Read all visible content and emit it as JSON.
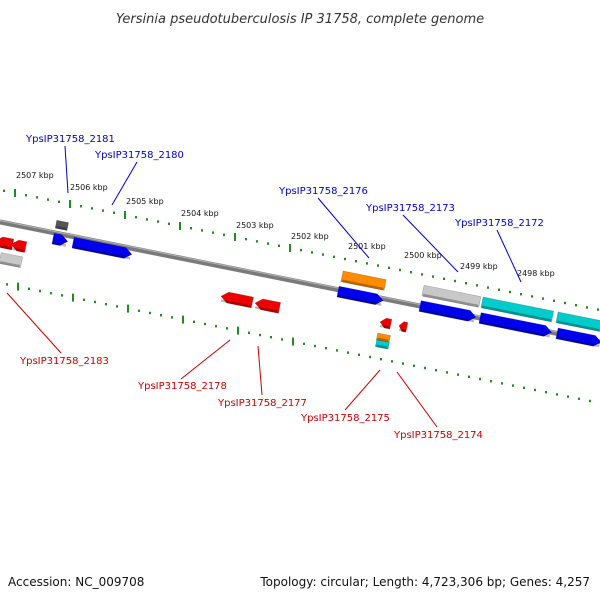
{
  "title": "Yersinia pseudotuberculosis IP 31758, complete genome",
  "footer": {
    "accession": "Accession: NC_009708",
    "topology": "Topology: circular; Length: 4,723,306 bp; Genes: 4,257"
  },
  "colors": {
    "forward_label": "#0000cc",
    "reverse_label": "#cc0000",
    "backbone": "#7a7a7a",
    "ticks": "#228b22",
    "blue_gene": "#0000ee",
    "red_gene": "#ee0000",
    "orange_gene": "#ff8c00",
    "cyan_gene": "#00cccc",
    "gray_gene": "#c8c8c8",
    "dark_gene": "#555555"
  },
  "scale_labels": [
    "2507 kbp",
    "2506 kbp",
    "2505 kbp",
    "2504 kbp",
    "2503 kbp",
    "2502 kbp",
    "2501 kbp",
    "2500 kbp",
    "2499 kbp",
    "2498 kbp"
  ],
  "forward_genes": [
    "YpsIP31758_2181",
    "YpsIP31758_2180",
    "YpsIP31758_2176",
    "YpsIP31758_2173",
    "YpsIP31758_2172"
  ],
  "reverse_genes": [
    "YpsIP31758_2183",
    "YpsIP31758_2178",
    "YpsIP31758_2177",
    "YpsIP31758_2175",
    "YpsIP31758_2174"
  ]
}
